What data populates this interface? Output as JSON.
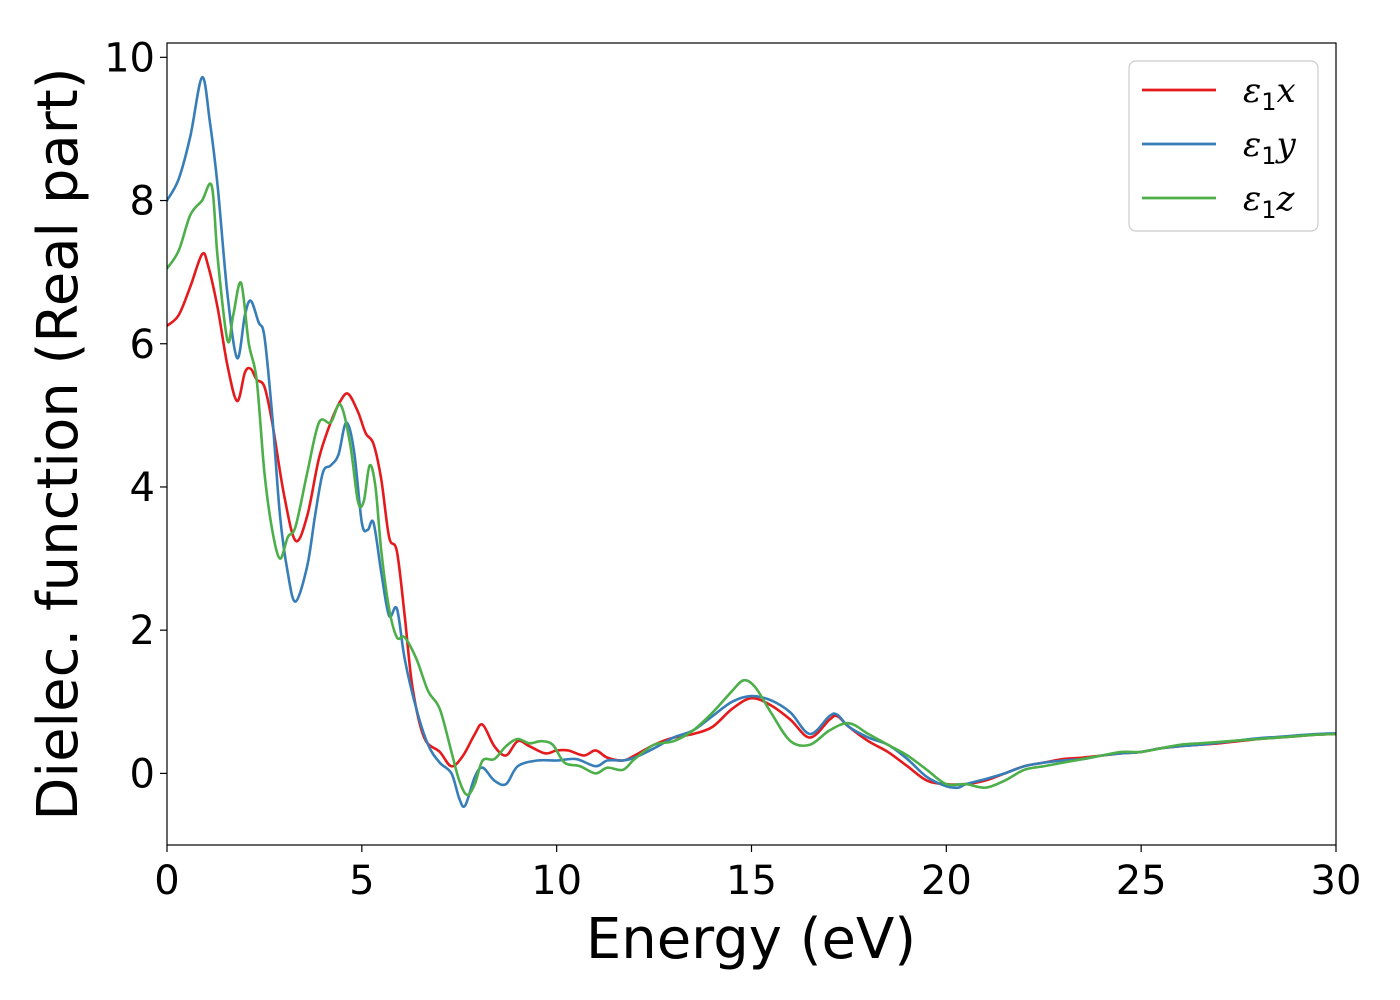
{
  "chart_data": {
    "type": "line",
    "title": "",
    "xlabel": "Energy (eV)",
    "ylabel": "Dielec. function (Real part)",
    "xlim": [
      0,
      30
    ],
    "ylim": [
      -1,
      10.2
    ],
    "xticks": [
      0,
      5,
      10,
      15,
      20,
      25,
      30
    ],
    "yticks": [
      0,
      2,
      4,
      6,
      8,
      10
    ],
    "grid": false,
    "legend_position": "top-right",
    "series": [
      {
        "name": "ε1x",
        "legend": {
          "symbol": "ε",
          "subscript": "1",
          "variable": "x"
        },
        "color": "#e41a1c",
        "x": [
          0,
          0.3,
          0.6,
          0.9,
          1.05,
          1.3,
          1.55,
          1.8,
          2.0,
          2.15,
          2.3,
          2.5,
          2.7,
          3.0,
          3.3,
          3.6,
          3.9,
          4.2,
          4.45,
          4.65,
          4.9,
          5.1,
          5.3,
          5.5,
          5.7,
          5.9,
          6.1,
          6.3,
          6.6,
          7.0,
          7.3,
          7.6,
          7.9,
          8.1,
          8.4,
          8.7,
          9.0,
          9.3,
          9.7,
          10.0,
          10.3,
          10.7,
          11.0,
          11.3,
          11.7,
          12.0,
          12.5,
          13.0,
          13.5,
          14.0,
          14.5,
          15.0,
          15.5,
          16.0,
          16.5,
          17.0,
          17.2,
          17.5,
          18.0,
          18.5,
          19.0,
          19.5,
          20.0,
          20.5,
          21.0,
          21.5,
          22.0,
          22.5,
          23.0,
          23.5,
          24.0,
          24.5,
          25.0,
          25.5,
          26.0,
          26.5,
          27.0,
          27.5,
          28.0,
          28.5,
          29.0,
          29.5,
          30.0
        ],
        "y": [
          6.25,
          6.4,
          6.8,
          7.25,
          7.1,
          6.5,
          5.7,
          5.2,
          5.6,
          5.65,
          5.5,
          5.4,
          4.9,
          3.9,
          3.25,
          3.6,
          4.4,
          4.9,
          5.2,
          5.3,
          5.05,
          4.75,
          4.6,
          4.1,
          3.3,
          3.1,
          2.2,
          1.2,
          0.5,
          0.3,
          0.1,
          0.25,
          0.55,
          0.68,
          0.38,
          0.25,
          0.45,
          0.38,
          0.28,
          0.32,
          0.32,
          0.25,
          0.32,
          0.22,
          0.18,
          0.25,
          0.4,
          0.5,
          0.55,
          0.65,
          0.9,
          1.05,
          0.95,
          0.75,
          0.5,
          0.75,
          0.8,
          0.65,
          0.45,
          0.3,
          0.1,
          -0.1,
          -0.15,
          -0.15,
          -0.1,
          0.0,
          0.1,
          0.15,
          0.2,
          0.22,
          0.25,
          0.28,
          0.3,
          0.35,
          0.38,
          0.4,
          0.42,
          0.45,
          0.48,
          0.5,
          0.52,
          0.54,
          0.55
        ]
      },
      {
        "name": "ε1y",
        "legend": {
          "symbol": "ε",
          "subscript": "1",
          "variable": "y"
        },
        "color": "#377eb8",
        "x": [
          0,
          0.3,
          0.6,
          0.9,
          1.1,
          1.3,
          1.55,
          1.8,
          2.0,
          2.15,
          2.35,
          2.5,
          2.7,
          2.9,
          3.1,
          3.3,
          3.6,
          3.8,
          4.0,
          4.2,
          4.4,
          4.6,
          4.8,
          5.0,
          5.15,
          5.3,
          5.5,
          5.7,
          5.9,
          6.1,
          6.4,
          6.7,
          7.0,
          7.3,
          7.5,
          7.65,
          7.9,
          8.1,
          8.4,
          8.7,
          9.0,
          9.5,
          10.0,
          10.5,
          11.0,
          11.3,
          11.7,
          12.0,
          12.5,
          13.0,
          13.5,
          14.0,
          14.5,
          15.0,
          15.5,
          16.0,
          16.5,
          17.0,
          17.2,
          17.5,
          18.0,
          18.5,
          19.0,
          19.5,
          20.0,
          20.3,
          20.5,
          21.0,
          21.5,
          22.0,
          22.5,
          23.0,
          23.5,
          24.0,
          24.5,
          25.0,
          25.5,
          26.0,
          26.5,
          27.0,
          27.5,
          28.0,
          28.5,
          29.0,
          29.5,
          30.0
        ],
        "y": [
          8.0,
          8.3,
          8.9,
          9.72,
          9.1,
          8.2,
          6.7,
          5.8,
          6.4,
          6.6,
          6.3,
          6.1,
          5.0,
          3.6,
          2.8,
          2.4,
          2.9,
          3.6,
          4.2,
          4.3,
          4.45,
          4.9,
          4.5,
          3.5,
          3.4,
          3.5,
          2.8,
          2.2,
          2.3,
          1.6,
          0.9,
          0.4,
          0.15,
          0.0,
          -0.35,
          -0.45,
          -0.05,
          0.08,
          -0.1,
          -0.15,
          0.1,
          0.18,
          0.18,
          0.2,
          0.1,
          0.18,
          0.18,
          0.22,
          0.35,
          0.5,
          0.6,
          0.8,
          1.0,
          1.08,
          1.02,
          0.85,
          0.55,
          0.8,
          0.82,
          0.65,
          0.5,
          0.4,
          0.2,
          -0.05,
          -0.18,
          -0.2,
          -0.15,
          -0.08,
          0.0,
          0.1,
          0.15,
          0.18,
          0.2,
          0.25,
          0.28,
          0.3,
          0.35,
          0.38,
          0.4,
          0.43,
          0.46,
          0.49,
          0.51,
          0.53,
          0.55,
          0.56
        ]
      },
      {
        "name": "ε1z",
        "legend": {
          "symbol": "ε",
          "subscript": "1",
          "variable": "z"
        },
        "color": "#4daf4a",
        "x": [
          0,
          0.3,
          0.6,
          0.9,
          1.15,
          1.3,
          1.55,
          1.7,
          1.9,
          2.1,
          2.3,
          2.5,
          2.7,
          2.9,
          3.1,
          3.3,
          3.6,
          3.9,
          4.2,
          4.45,
          4.7,
          4.9,
          5.05,
          5.2,
          5.35,
          5.5,
          5.7,
          5.9,
          6.1,
          6.4,
          6.7,
          7.0,
          7.3,
          7.5,
          7.7,
          7.9,
          8.1,
          8.4,
          8.7,
          9.0,
          9.3,
          9.6,
          9.9,
          10.2,
          10.6,
          11.0,
          11.3,
          11.7,
          12.0,
          12.5,
          13.0,
          13.5,
          14.0,
          14.5,
          14.8,
          15.1,
          15.5,
          16.0,
          16.5,
          17.0,
          17.5,
          18.0,
          18.5,
          19.0,
          19.5,
          20.0,
          20.5,
          21.0,
          21.5,
          22.0,
          22.5,
          23.0,
          23.5,
          24.0,
          24.5,
          25.0,
          25.5,
          26.0,
          26.5,
          27.0,
          27.5,
          28.0,
          28.5,
          29.0,
          29.5,
          30.0
        ],
        "y": [
          7.05,
          7.3,
          7.8,
          8.0,
          8.2,
          7.2,
          6.05,
          6.4,
          6.85,
          6.0,
          5.5,
          4.2,
          3.4,
          3.0,
          3.3,
          3.45,
          4.2,
          4.9,
          4.9,
          5.15,
          4.6,
          3.8,
          3.8,
          4.3,
          4.0,
          3.1,
          2.3,
          1.9,
          1.9,
          1.6,
          1.15,
          0.9,
          0.3,
          -0.1,
          -0.3,
          -0.15,
          0.18,
          0.2,
          0.38,
          0.48,
          0.42,
          0.45,
          0.4,
          0.15,
          0.1,
          0.0,
          0.08,
          0.05,
          0.2,
          0.4,
          0.45,
          0.6,
          0.85,
          1.15,
          1.3,
          1.2,
          0.85,
          0.45,
          0.4,
          0.6,
          0.7,
          0.55,
          0.4,
          0.25,
          0.05,
          -0.15,
          -0.15,
          -0.2,
          -0.1,
          0.05,
          0.1,
          0.15,
          0.2,
          0.25,
          0.3,
          0.3,
          0.35,
          0.4,
          0.42,
          0.44,
          0.46,
          0.48,
          0.5,
          0.52,
          0.54,
          0.55
        ]
      }
    ]
  }
}
